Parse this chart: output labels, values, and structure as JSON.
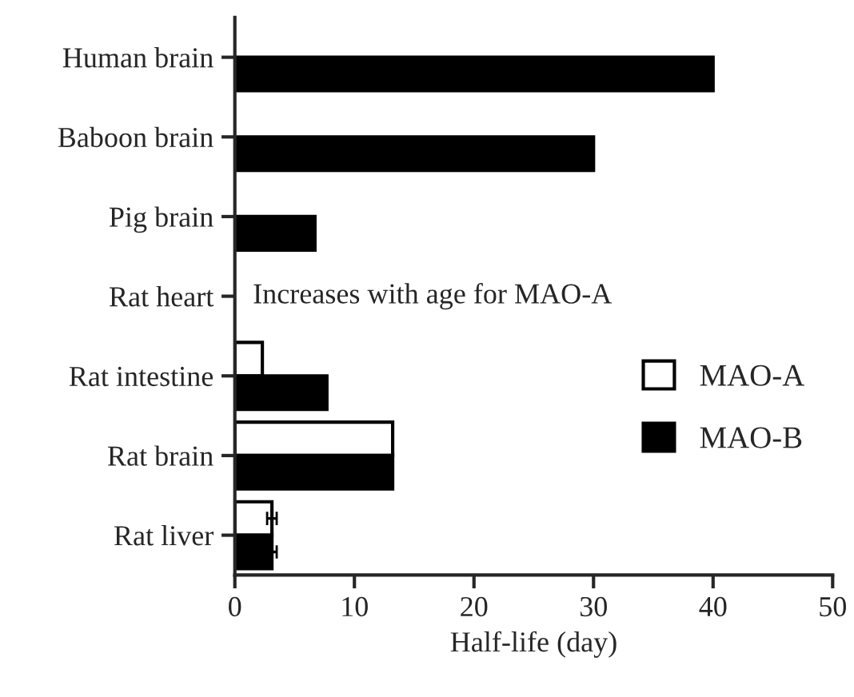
{
  "chart_data": {
    "type": "bar",
    "orientation": "horizontal",
    "xlabel": "Half-life (day)",
    "categories": [
      "Human brain",
      "Baboon brain",
      "Pig brain",
      "Rat heart",
      "Rat intestine",
      "Rat brain",
      "Rat liver"
    ],
    "series": [
      {
        "name": "MAO-A",
        "color": "#ffffff",
        "values": [
          null,
          null,
          null,
          null,
          2.3,
          13.2,
          3.1
        ],
        "errors": [
          null,
          null,
          null,
          null,
          null,
          null,
          0.4
        ]
      },
      {
        "name": "MAO-B",
        "color": "#000000",
        "values": [
          40,
          30,
          6.7,
          null,
          7.7,
          13.2,
          3.1
        ],
        "errors": [
          null,
          null,
          null,
          null,
          null,
          null,
          0.4
        ]
      }
    ],
    "xlim": [
      0,
      50
    ],
    "xticks": [
      0,
      10,
      20,
      30,
      40,
      50
    ],
    "annotations": [
      "Increases with age for MAO-A"
    ],
    "legend": "right",
    "grid": false
  }
}
